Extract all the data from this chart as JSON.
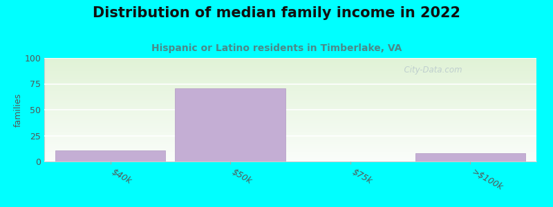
{
  "title": "Distribution of median family income in 2022",
  "subtitle": "Hispanic or Latino residents in Timberlake, VA",
  "categories": [
    "$40k",
    "$50k",
    "$75k",
    ">$100k"
  ],
  "values": [
    11,
    71,
    0,
    8
  ],
  "bar_color": "#c4aed4",
  "bar_edge_color": "#b098c2",
  "ylabel": "families",
  "ylim": [
    0,
    100
  ],
  "yticks": [
    0,
    25,
    50,
    75,
    100
  ],
  "background_color": "#00ffff",
  "title_fontsize": 15,
  "title_color": "#111111",
  "subtitle_fontsize": 10,
  "subtitle_color": "#4a8a8a",
  "watermark_text": "  City-Data.com",
  "watermark_color": "#b8c8cc",
  "ylabel_fontsize": 9,
  "tick_fontsize": 9,
  "tick_color": "#555555"
}
